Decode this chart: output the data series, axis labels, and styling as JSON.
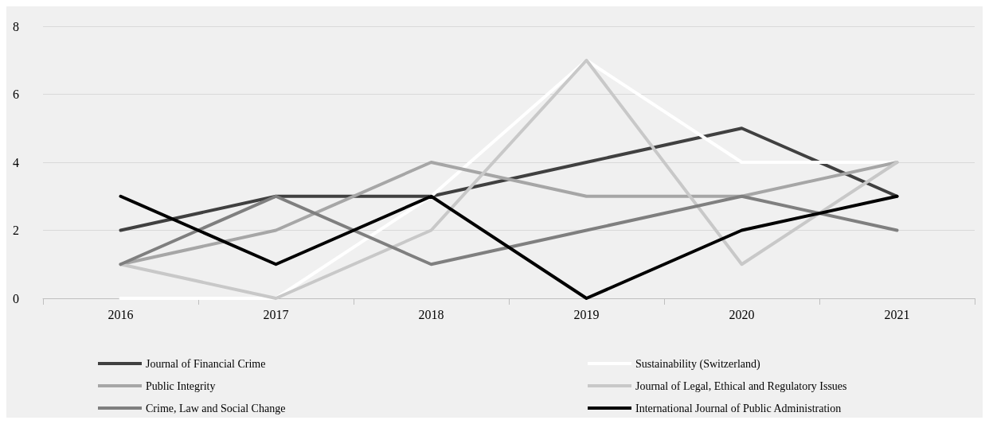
{
  "chart_data": {
    "type": "line",
    "categories": [
      "2016",
      "2017",
      "2018",
      "2019",
      "2020",
      "2021"
    ],
    "series": [
      {
        "name": "Journal of Financial Crime",
        "color": "#404040",
        "values": [
          2,
          3,
          3,
          4,
          5,
          3
        ]
      },
      {
        "name": "Sustainability (Switzerland)",
        "color": "#ffffff",
        "values": [
          0,
          0,
          3,
          7,
          4,
          4
        ]
      },
      {
        "name": "Public Integrity",
        "color": "#a6a6a6",
        "values": [
          1,
          2,
          4,
          3,
          3,
          4
        ]
      },
      {
        "name": "Journal of Legal, Ethical and Regulatory Issues",
        "color": "#c8c8c8",
        "values": [
          1,
          0,
          2,
          7,
          1,
          4
        ]
      },
      {
        "name": "Crime, Law and Social Change",
        "color": "#7f7f7f",
        "values": [
          1,
          3,
          1,
          2,
          3,
          2
        ]
      },
      {
        "name": "International Journal of Public Administration",
        "color": "#000000",
        "values": [
          3,
          1,
          3,
          0,
          2,
          3
        ]
      }
    ],
    "ylim": [
      0,
      8
    ],
    "yticks": [
      0,
      2,
      4,
      6,
      8
    ],
    "grid": "y",
    "legend": "bottom",
    "marker": "none",
    "line_style": "solid"
  }
}
